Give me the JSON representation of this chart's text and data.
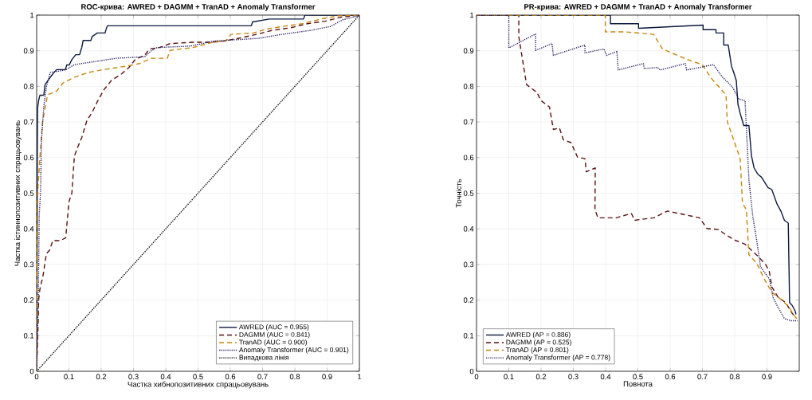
{
  "chart_data": [
    {
      "type": "line",
      "title": "ROC-крива: AWRED + DAGMM + TranAD + Anomaly Transformer",
      "xlabel": "Частка хибнопозитивних спрацьовувань",
      "ylabel": "Частка істиннопозитивних спрацьовувань",
      "xlim": [
        0,
        1
      ],
      "ylim": [
        0,
        1
      ],
      "xticks": [
        0,
        0.1,
        0.2,
        0.3,
        0.4,
        0.5,
        0.6,
        0.7,
        0.8,
        0.9,
        1
      ],
      "yticks": [
        0,
        0.1,
        0.2,
        0.3,
        0.4,
        0.5,
        0.6,
        0.7,
        0.8,
        0.9,
        1
      ],
      "grid": true,
      "legend": "bottom right",
      "series": [
        {
          "name": "AWRED (AUC = 0.955)",
          "color": "#0b1a3f",
          "line_style": "solid",
          "x": [
            0,
            0.002,
            0.003,
            0.006,
            0.01,
            0.022,
            0.026,
            0.038,
            0.05,
            0.062,
            0.089,
            0.093,
            0.101,
            0.109,
            0.121,
            0.133,
            0.14,
            0.144,
            0.168,
            0.172,
            0.188,
            0.212,
            0.215,
            0.219,
            0.665,
            0.669,
            0.721,
            0.827,
            0.831,
            1
          ],
          "values": [
            0,
            0.6,
            0.74,
            0.76,
            0.775,
            0.775,
            0.805,
            0.82,
            0.835,
            0.847,
            0.847,
            0.86,
            0.86,
            0.875,
            0.889,
            0.889,
            0.91,
            0.929,
            0.929,
            0.94,
            0.95,
            0.95,
            0.96,
            0.97,
            0.97,
            0.981,
            0.989,
            0.989,
            1,
            1
          ]
        },
        {
          "name": "DAGMM (AUC = 0.841)",
          "color": "#5a1010",
          "line_style": "dashed",
          "x": [
            0,
            0.005,
            0.006,
            0.01,
            0.02,
            0.03,
            0.04,
            0.05,
            0.074,
            0.09,
            0.1,
            0.109,
            0.117,
            0.128,
            0.14,
            0.156,
            0.172,
            0.188,
            0.208,
            0.231,
            0.263,
            0.286,
            0.306,
            0.334,
            0.35,
            0.381,
            0.413,
            0.484,
            0.539,
            0.579,
            0.626,
            0.681,
            0.728,
            0.784,
            0.839,
            0.894,
            0.942,
            0.981,
            1
          ],
          "values": [
            0,
            0.15,
            0.2,
            0.23,
            0.27,
            0.33,
            0.34,
            0.367,
            0.367,
            0.375,
            0.476,
            0.5,
            0.605,
            0.631,
            0.657,
            0.705,
            0.727,
            0.757,
            0.79,
            0.816,
            0.835,
            0.853,
            0.876,
            0.887,
            0.905,
            0.909,
            0.92,
            0.924,
            0.924,
            0.927,
            0.935,
            0.946,
            0.957,
            0.964,
            0.976,
            0.983,
            0.994,
            0.998,
            1
          ]
        },
        {
          "name": "TranAD (AUC = 0.900)",
          "color": "#c8860a",
          "line_style": "dashed",
          "x": [
            0,
            0.003,
            0.01,
            0.018,
            0.026,
            0.034,
            0.062,
            0.081,
            0.105,
            0.121,
            0.16,
            0.2,
            0.279,
            0.318,
            0.357,
            0.405,
            0.413,
            0.484,
            0.547,
            0.586,
            0.602,
            0.673,
            0.713,
            0.76,
            0.823,
            0.886,
            0.934,
            1
          ],
          "values": [
            0,
            0.5,
            0.6,
            0.7,
            0.739,
            0.776,
            0.787,
            0.809,
            0.82,
            0.827,
            0.839,
            0.846,
            0.857,
            0.864,
            0.879,
            0.879,
            0.901,
            0.909,
            0.924,
            0.927,
            0.946,
            0.95,
            0.961,
            0.968,
            0.976,
            0.99,
            0.998,
            1
          ]
        },
        {
          "name": "Anomaly Transformer (AUC = 0.901)",
          "color": "#2b2266",
          "line_style": "dotted",
          "x": [
            0,
            0.005,
            0.008,
            0.012,
            0.015,
            0.022,
            0.03,
            0.042,
            0.089,
            0.117,
            0.168,
            0.247,
            0.334,
            0.357,
            0.373,
            0.476,
            0.547,
            0.689,
            0.76,
            0.847,
            0.91,
            0.949,
            0.997,
            1
          ],
          "values": [
            0,
            0.2,
            0.44,
            0.5,
            0.65,
            0.742,
            0.798,
            0.839,
            0.846,
            0.861,
            0.868,
            0.879,
            0.883,
            0.901,
            0.909,
            0.913,
            0.927,
            0.935,
            0.946,
            0.957,
            0.968,
            0.987,
            0.998,
            1
          ]
        },
        {
          "name": "Випадкова лінія",
          "color": "#000000",
          "line_style": "dotted",
          "x": [
            0,
            1
          ],
          "values": [
            0,
            1
          ]
        }
      ]
    },
    {
      "type": "line",
      "title": "PR-крива: AWRED + DAGMM + TranAD + Anomaly Transformer",
      "xlabel": "Повнота",
      "ylabel": "Точність",
      "xlim": [
        0,
        1
      ],
      "ylim": [
        0,
        1
      ],
      "xticks": [
        0,
        0.1,
        0.2,
        0.3,
        0.4,
        0.5,
        0.6,
        0.7,
        0.8,
        0.9
      ],
      "yticks": [
        0,
        0.1,
        0.2,
        0.3,
        0.4,
        0.5,
        0.6,
        0.7,
        0.8,
        0.9,
        1
      ],
      "grid": true,
      "legend": "bottom left",
      "series": [
        {
          "name": "AWRED (AP = 0.886)",
          "color": "#0b1a3f",
          "line_style": "solid",
          "x": [
            0,
            0.415,
            0.415,
            0.502,
            0.502,
            0.702,
            0.702,
            0.742,
            0.742,
            0.766,
            0.766,
            0.78,
            0.79,
            0.797,
            0.805,
            0.81,
            0.817,
            0.828,
            0.844,
            0.852,
            0.86,
            0.872,
            0.883,
            0.903,
            0.915,
            0.931,
            0.943,
            0.954,
            0.966,
            0.97,
            0.978,
            0.987,
            0.99
          ],
          "values": [
            1,
            1,
            0.976,
            0.976,
            0.963,
            0.972,
            0.959,
            0.959,
            0.95,
            0.95,
            0.916,
            0.916,
            0.857,
            0.839,
            0.816,
            0.75,
            0.724,
            0.69,
            0.69,
            0.605,
            0.571,
            0.553,
            0.545,
            0.516,
            0.51,
            0.47,
            0.45,
            0.424,
            0.416,
            0.193,
            0.185,
            0.17,
            0.16
          ]
        },
        {
          "name": "DAGMM (AP = 0.525)",
          "color": "#5a1010",
          "line_style": "dashed",
          "x": [
            0,
            0.131,
            0.131,
            0.155,
            0.187,
            0.2,
            0.226,
            0.238,
            0.257,
            0.269,
            0.293,
            0.313,
            0.336,
            0.34,
            0.368,
            0.367,
            0.376,
            0.432,
            0.48,
            0.49,
            0.549,
            0.592,
            0.612,
            0.691,
            0.714,
            0.75,
            0.773,
            0.801,
            0.832,
            0.872,
            0.895,
            0.907,
            0.915,
            0.935,
            0.958,
            0.978,
            0.99
          ],
          "values": [
            1,
            1,
            0.939,
            0.805,
            0.783,
            0.76,
            0.742,
            0.679,
            0.683,
            0.65,
            0.642,
            0.601,
            0.597,
            0.56,
            0.571,
            0.454,
            0.431,
            0.431,
            0.443,
            0.424,
            0.431,
            0.45,
            0.446,
            0.431,
            0.401,
            0.398,
            0.383,
            0.368,
            0.357,
            0.323,
            0.301,
            0.282,
            0.237,
            0.207,
            0.193,
            0.163,
            0.15
          ]
        },
        {
          "name": "TranAD (AP = 0.801)",
          "color": "#c8860a",
          "line_style": "dashed",
          "x": [
            0,
            0.399,
            0.399,
            0.462,
            0.549,
            0.576,
            0.651,
            0.699,
            0.73,
            0.773,
            0.777,
            0.817,
            0.824,
            0.836,
            0.844,
            0.868,
            0.891,
            0.915,
            0.946,
            0.97,
            0.982,
            0.995
          ],
          "values": [
            1,
            1,
            0.953,
            0.953,
            0.946,
            0.905,
            0.876,
            0.861,
            0.82,
            0.776,
            0.701,
            0.597,
            0.472,
            0.454,
            0.327,
            0.304,
            0.26,
            0.222,
            0.2,
            0.178,
            0.159,
            0.145
          ]
        },
        {
          "name": "Anomaly Transformer (AP = 0.778)",
          "color": "#2b2266",
          "line_style": "dotted",
          "x": [
            0,
            0.1,
            0.1,
            0.183,
            0.183,
            0.234,
            0.238,
            0.336,
            0.336,
            0.395,
            0.403,
            0.435,
            0.439,
            0.517,
            0.52,
            0.561,
            0.569,
            0.647,
            0.651,
            0.691,
            0.734,
            0.761,
            0.793,
            0.813,
            0.832,
            0.844,
            0.856,
            0.868,
            0.88,
            0.907,
            0.919,
            0.935,
            0.954,
            0.974,
            0.995
          ],
          "values": [
            1,
            1,
            0.908,
            0.947,
            0.901,
            0.92,
            0.887,
            0.916,
            0.894,
            0.905,
            0.887,
            0.898,
            0.846,
            0.864,
            0.85,
            0.853,
            0.846,
            0.864,
            0.846,
            0.853,
            0.861,
            0.827,
            0.798,
            0.764,
            0.76,
            0.538,
            0.435,
            0.368,
            0.293,
            0.26,
            0.207,
            0.178,
            0.148,
            0.142,
            0.142
          ]
        }
      ]
    }
  ]
}
